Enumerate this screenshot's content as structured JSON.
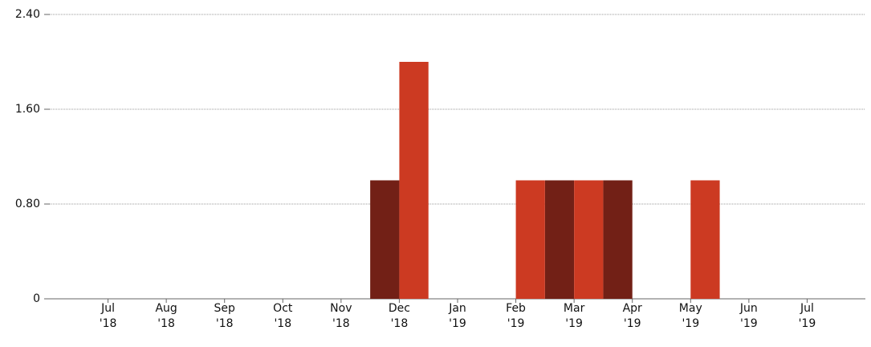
{
  "chart_data": {
    "type": "bar",
    "grid": true,
    "xlim": [
      -1,
      13
    ],
    "xticks": [
      {
        "value": 0,
        "label": "Jul '18"
      },
      {
        "value": 1,
        "label": "Aug '18"
      },
      {
        "value": 2,
        "label": "Sep '18"
      },
      {
        "value": 3,
        "label": "Oct '18"
      },
      {
        "value": 4,
        "label": "Nov '18"
      },
      {
        "value": 5,
        "label": "Dec '18"
      },
      {
        "value": 6,
        "label": "Jan '19"
      },
      {
        "value": 7,
        "label": "Feb '19"
      },
      {
        "value": 8,
        "label": "Mar '19"
      },
      {
        "value": 9,
        "label": "Apr '19"
      },
      {
        "value": 10,
        "label": "May '19"
      },
      {
        "value": 11,
        "label": "Jun '19"
      },
      {
        "value": 12,
        "label": "Jul '19"
      }
    ],
    "ylim": [
      0,
      2.4
    ],
    "yticks": [
      0,
      {
        "value": 0.8,
        "label": "0.80"
      },
      {
        "value": 1.6,
        "label": "1.60"
      },
      {
        "value": 2.4,
        "label": "2.40"
      }
    ],
    "series": [
      {
        "color": "#722016",
        "x": [
          4.75,
          7.75,
          8.75
        ],
        "values": [
          1,
          1,
          1
        ]
      },
      {
        "color": "#cc3a22",
        "x": [
          5.25,
          7.25,
          8.25,
          10.25
        ],
        "values": [
          2,
          1,
          1,
          1
        ]
      }
    ]
  }
}
